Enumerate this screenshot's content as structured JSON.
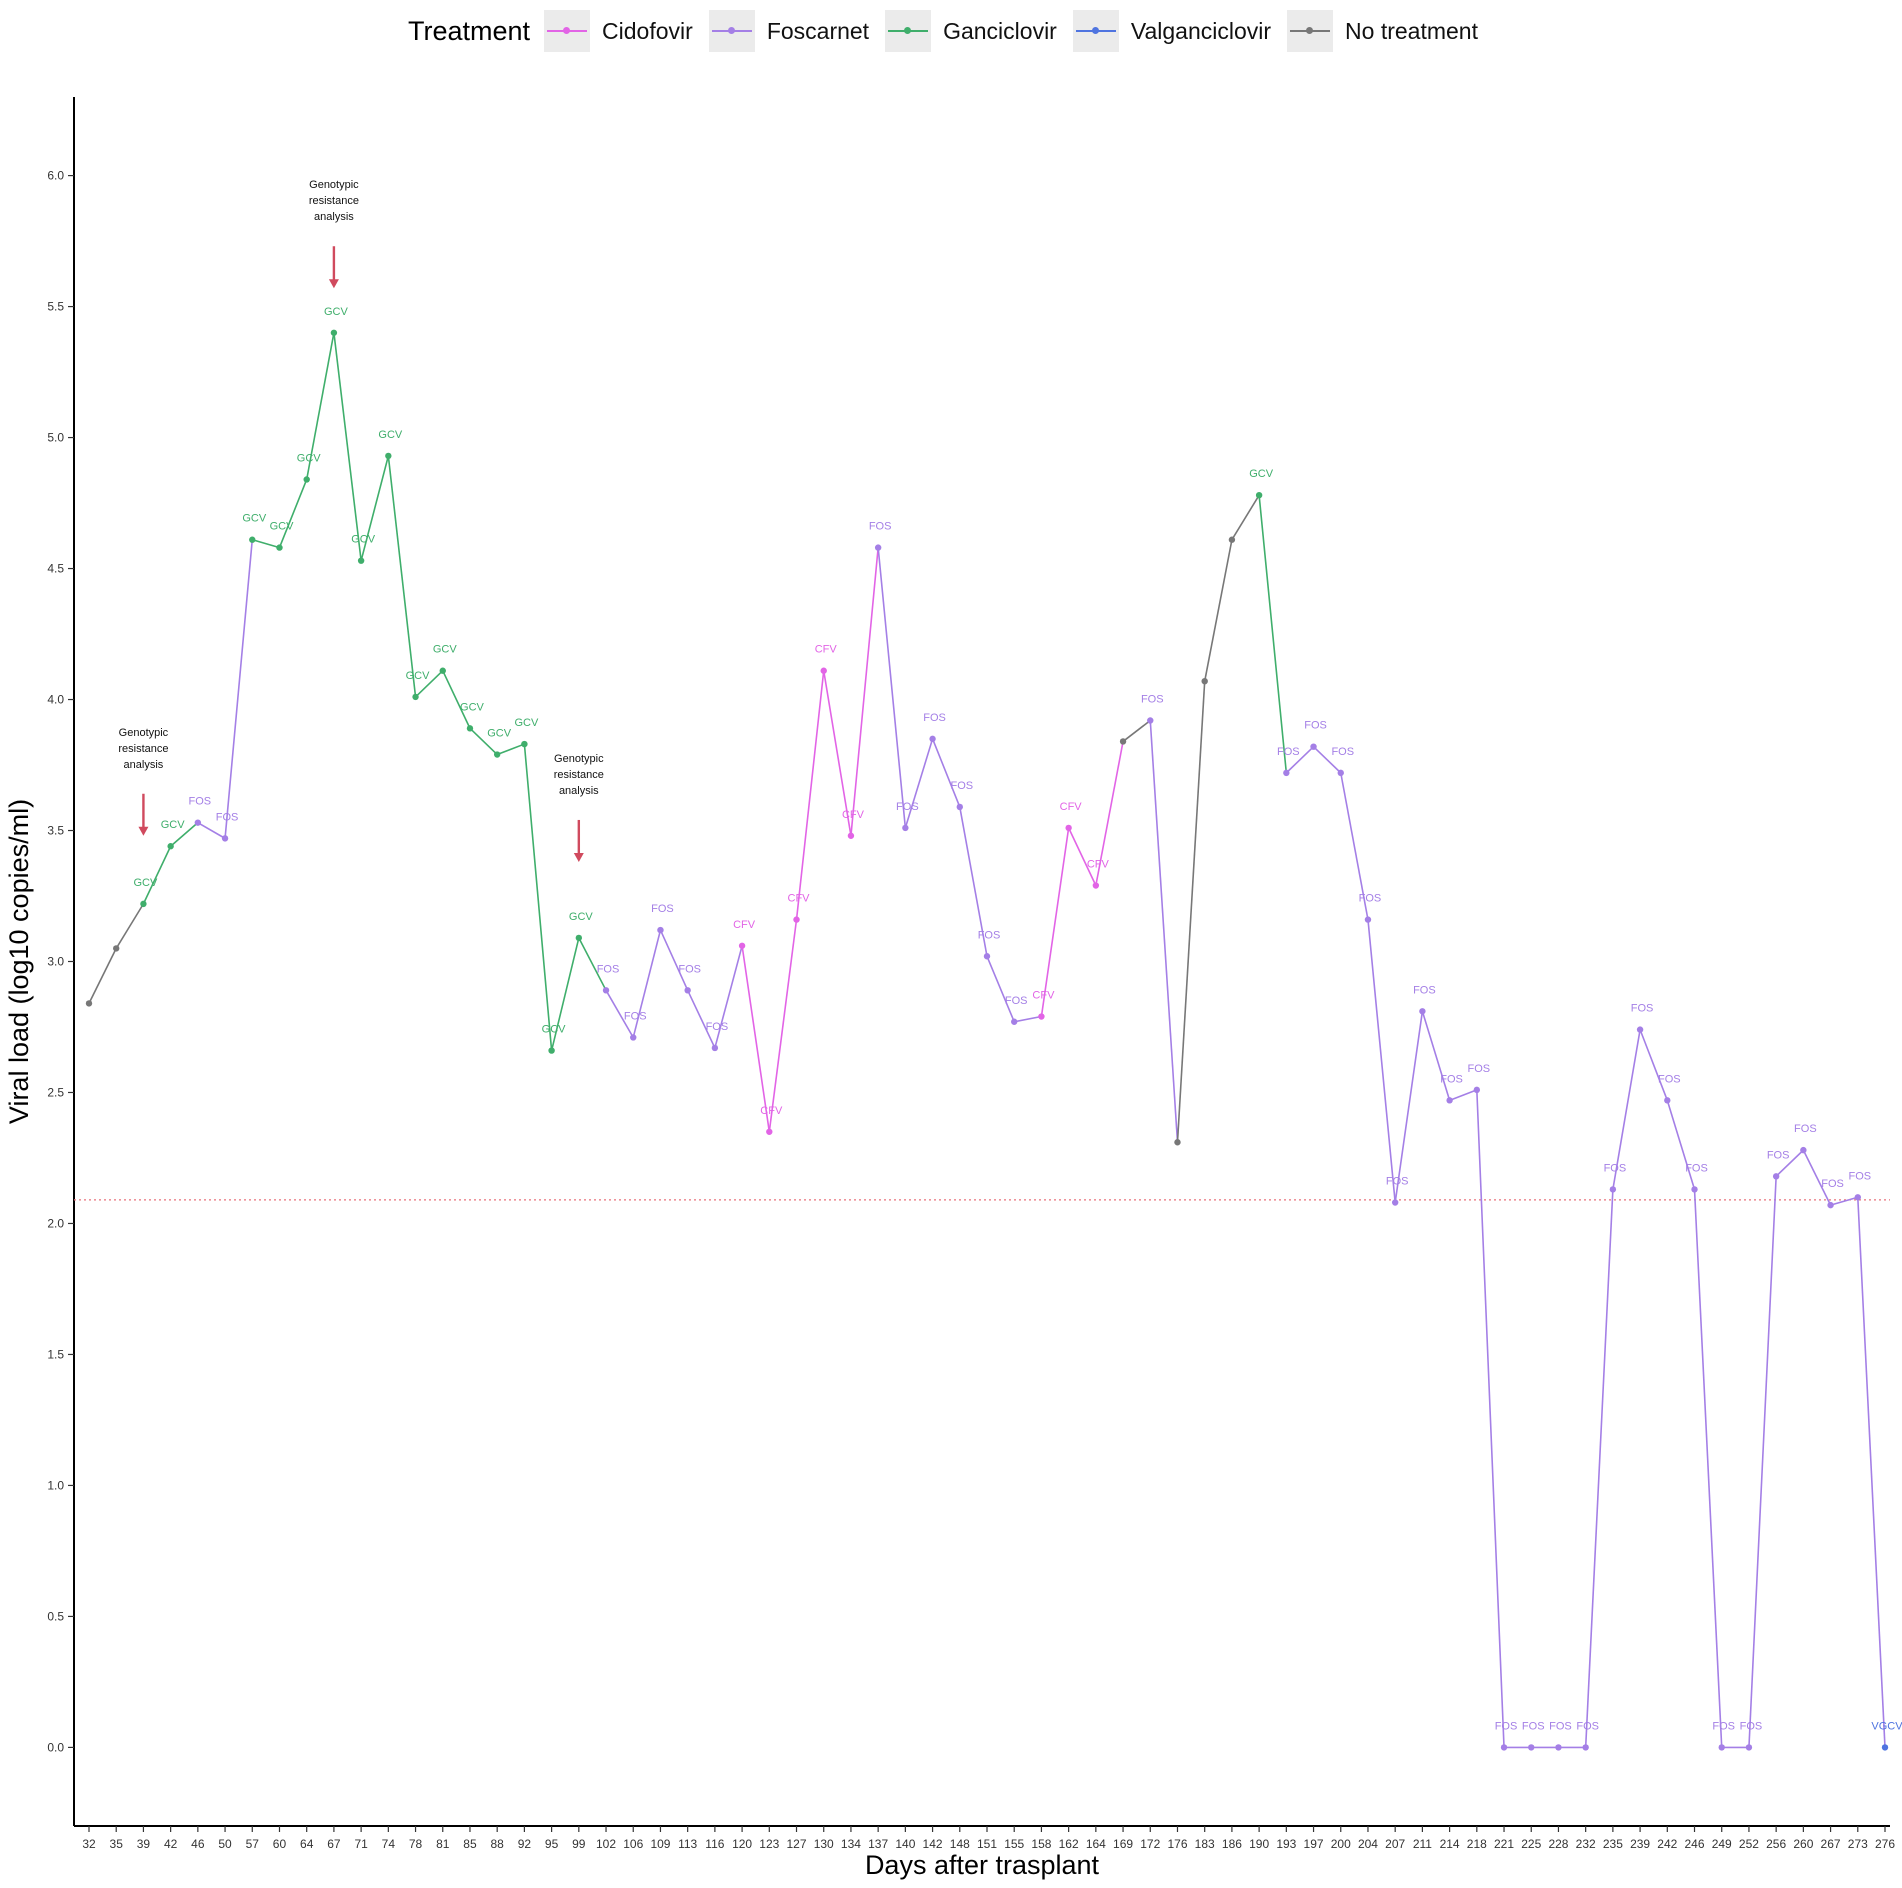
{
  "legend": {
    "title": "Treatment",
    "position": "top",
    "items": [
      {
        "label": "Cidofovir",
        "color": "#e264e6"
      },
      {
        "label": "Foscarnet",
        "color": "#a47fe6"
      },
      {
        "label": "Ganciclovir",
        "color": "#3fae6b"
      },
      {
        "label": "Valganciclovir",
        "color": "#4f74e0"
      },
      {
        "label": "No treatment",
        "color": "#777777"
      }
    ]
  },
  "chart_data": {
    "type": "line",
    "xlabel": "Days after trasplant",
    "ylabel": "Viral load (log10 copies/ml)",
    "ylim": [
      -0.3,
      6.3
    ],
    "yticks": [
      "0.0",
      "0.5",
      "1.0",
      "1.5",
      "2.0",
      "2.5",
      "3.0",
      "3.5",
      "4.0",
      "4.5",
      "5.0",
      "5.5",
      "6.0"
    ],
    "x": [
      "32",
      "35",
      "39",
      "42",
      "46",
      "50",
      "57",
      "60",
      "64",
      "67",
      "71",
      "74",
      "78",
      "81",
      "85",
      "88",
      "92",
      "95",
      "99",
      "102",
      "106",
      "109",
      "113",
      "116",
      "120",
      "123",
      "127",
      "130",
      "134",
      "137",
      "140",
      "142",
      "148",
      "151",
      "155",
      "158",
      "162",
      "164",
      "169",
      "172",
      "176",
      "183",
      "186",
      "190",
      "193",
      "197",
      "200",
      "204",
      "207",
      "211",
      "214",
      "218",
      "221",
      "225",
      "228",
      "232",
      "235",
      "239",
      "242",
      "246",
      "249",
      "252",
      "256",
      "260",
      "267",
      "273",
      "276"
    ],
    "values": [
      2.84,
      3.05,
      3.22,
      3.44,
      3.53,
      3.47,
      4.61,
      4.58,
      4.84,
      5.4,
      4.53,
      4.93,
      4.01,
      4.11,
      3.89,
      3.79,
      3.83,
      2.66,
      3.09,
      2.89,
      2.71,
      3.12,
      2.89,
      2.67,
      3.06,
      2.35,
      3.16,
      4.11,
      3.48,
      4.58,
      3.51,
      3.85,
      3.59,
      3.02,
      2.77,
      2.79,
      3.51,
      3.29,
      3.84,
      3.92,
      2.31,
      4.07,
      4.61,
      4.78,
      3.72,
      3.82,
      3.72,
      3.16,
      2.08,
      2.81,
      2.47,
      2.51,
      0.0,
      0.0,
      0.0,
      0.0,
      2.13,
      2.74,
      2.47,
      2.13,
      0.0,
      0.0,
      2.18,
      2.28,
      2.07,
      2.1,
      0.0
    ],
    "treatment": [
      "none",
      "none",
      "ganciclovir",
      "ganciclovir",
      "foscarnet",
      "foscarnet",
      "ganciclovir",
      "ganciclovir",
      "ganciclovir",
      "ganciclovir",
      "ganciclovir",
      "ganciclovir",
      "ganciclovir",
      "ganciclovir",
      "ganciclovir",
      "ganciclovir",
      "ganciclovir",
      "ganciclovir",
      "ganciclovir",
      "foscarnet",
      "foscarnet",
      "foscarnet",
      "foscarnet",
      "foscarnet",
      "cidofovir",
      "cidofovir",
      "cidofovir",
      "cidofovir",
      "cidofovir",
      "foscarnet",
      "foscarnet",
      "foscarnet",
      "foscarnet",
      "foscarnet",
      "foscarnet",
      "cidofovir",
      "cidofovir",
      "cidofovir",
      "none",
      "foscarnet",
      "none",
      "none",
      "none",
      "ganciclovir",
      "foscarnet",
      "foscarnet",
      "foscarnet",
      "foscarnet",
      "foscarnet",
      "foscarnet",
      "foscarnet",
      "foscarnet",
      "foscarnet",
      "foscarnet",
      "foscarnet",
      "foscarnet",
      "foscarnet",
      "foscarnet",
      "foscarnet",
      "foscarnet",
      "foscarnet",
      "foscarnet",
      "foscarnet",
      "foscarnet",
      "foscarnet",
      "foscarnet",
      "valganciclovir"
    ],
    "point_labels": [
      "",
      "",
      "GCV",
      "GCV",
      "FOS",
      "FOS",
      "GCV",
      "GCV",
      "GCV",
      "GCV",
      "GCV",
      "GCV",
      "GCV",
      "GCV",
      "GCV",
      "GCV",
      "GCV",
      "GCV",
      "GCV",
      "FOS",
      "FOS",
      "FOS",
      "FOS",
      "FOS",
      "CFV",
      "CFV",
      "CFV",
      "CFV",
      "CFV",
      "FOS",
      "FOS",
      "FOS",
      "FOS",
      "FOS",
      "FOS",
      "CFV",
      "CFV",
      "CFV",
      "",
      "FOS",
      "",
      "",
      "",
      "GCV",
      "FOS",
      "FOS",
      "FOS",
      "FOS",
      "FOS",
      "FOS",
      "FOS",
      "FOS",
      "FOS",
      "FOS",
      "FOS",
      "FOS",
      "FOS",
      "FOS",
      "FOS",
      "FOS",
      "FOS",
      "FOS",
      "FOS",
      "FOS",
      "FOS",
      "FOS",
      "VGCV"
    ],
    "colors": {
      "cidofovir": "#e264e6",
      "foscarnet": "#a47fe6",
      "ganciclovir": "#3fae6b",
      "valganciclovir": "#4f74e0",
      "none": "#777777"
    },
    "threshold": {
      "y": 2.09,
      "color": "#e8707a",
      "style": "dotted"
    },
    "annotations": [
      {
        "text": [
          "Genotypic",
          "resistance",
          "analysis"
        ],
        "x": "39",
        "arrow_tip_y": 3.48
      },
      {
        "text": [
          "Genotypic",
          "resistance",
          "analysis"
        ],
        "x": "67",
        "arrow_tip_y": 5.57
      },
      {
        "text": [
          "Genotypic",
          "resistance",
          "analysis"
        ],
        "x": "99",
        "arrow_tip_y": 3.38
      }
    ],
    "grid": false
  }
}
